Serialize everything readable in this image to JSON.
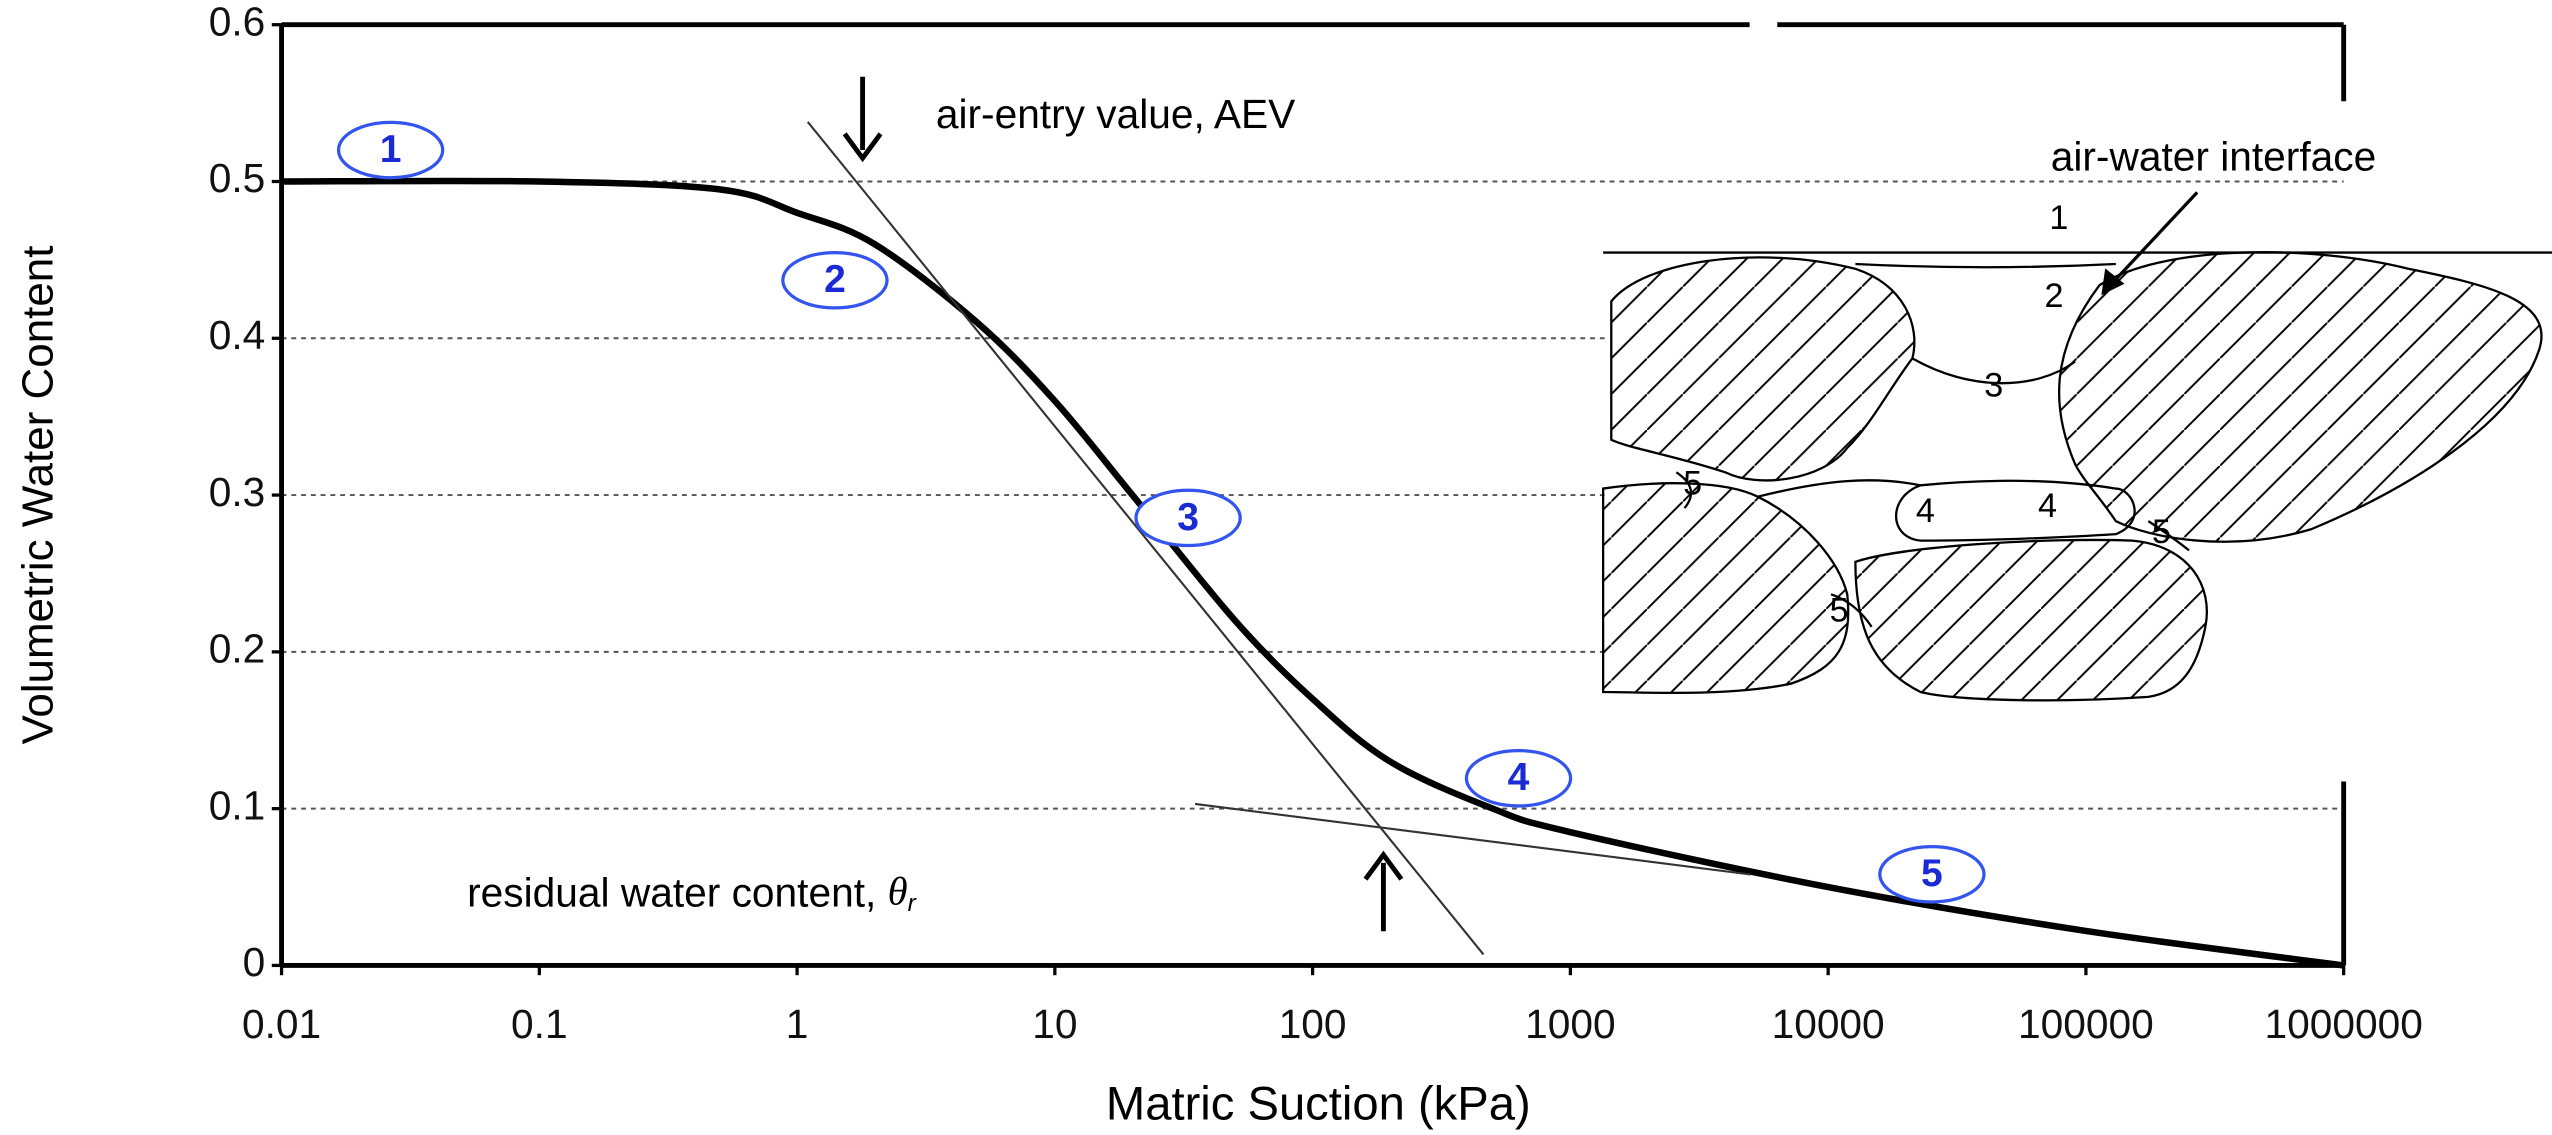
{
  "chart_data": {
    "type": "line",
    "x_label": "Matric Suction (kPa)",
    "y_label": "Volumetric Water Content",
    "xscale": "log",
    "xlim": [
      0.01,
      1000000
    ],
    "ylim": [
      0,
      0.6
    ],
    "xticks": [
      0.01,
      0.1,
      1,
      10,
      100,
      1000,
      10000,
      100000,
      1000000
    ],
    "yticks": [
      0,
      0.1,
      0.2,
      0.3,
      0.4,
      0.5,
      0.6
    ],
    "grid": true,
    "series": [
      {
        "color": "#000000",
        "width": 4,
        "x": [
          0.01,
          0.1,
          0.5,
          1,
          2,
          5,
          10,
          20,
          50,
          100,
          200,
          500,
          1000,
          10000,
          100000,
          1000000
        ],
        "values": [
          0.5,
          0.5,
          0.495,
          0.48,
          0.46,
          0.41,
          0.36,
          0.3,
          0.22,
          0.17,
          0.13,
          0.1,
          0.085,
          0.05,
          0.022,
          0
        ]
      },
      {
        "color": "#333333",
        "width": 1.3,
        "x": [
          1.1,
          460
        ],
        "values": [
          0.538,
          0.007
        ]
      },
      {
        "color": "#333333",
        "width": 1.3,
        "x": [
          35,
          5000
        ],
        "values": [
          0.103,
          0.058
        ]
      }
    ],
    "annotations": {
      "aev": "air-entry value, AEV",
      "residual": {
        "text": "residual water content, ",
        "symbol": "θ",
        "subscript": "r"
      }
    },
    "stage_labels": [
      "1",
      "2",
      "3",
      "4",
      "5"
    ],
    "inset": {
      "caption": "air-water interface",
      "labels": [
        "1",
        "2",
        "3",
        "4",
        "4",
        "5",
        "5",
        "5"
      ]
    }
  }
}
